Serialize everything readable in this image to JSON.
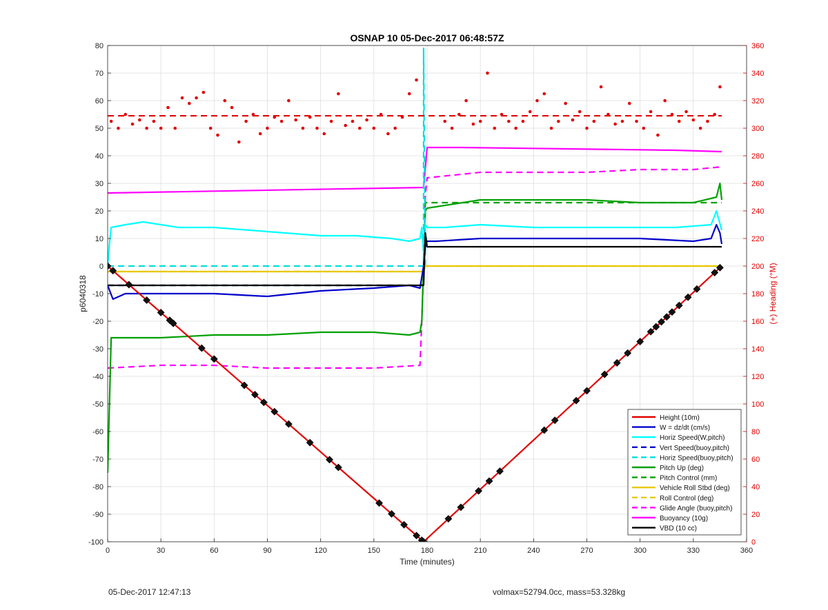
{
  "chart_data": {
    "type": "line",
    "title": "OSNAP 10 05-Dec-2017 06:48:57Z",
    "xlabel": "Time (minutes)",
    "ylabel": "p6040318",
    "y2label": "(+) Heading (°M)",
    "xlim": [
      0,
      360
    ],
    "ylim": [
      -100,
      80
    ],
    "y2lim": [
      0,
      360
    ],
    "xticks": [
      0,
      30,
      60,
      90,
      120,
      150,
      180,
      210,
      240,
      270,
      300,
      330,
      360
    ],
    "yticks": [
      -100,
      -90,
      -80,
      -70,
      -60,
      -50,
      -40,
      -30,
      -20,
      -10,
      0,
      10,
      20,
      30,
      40,
      50,
      60,
      70,
      80
    ],
    "y2ticks": [
      0,
      20,
      40,
      60,
      80,
      100,
      120,
      140,
      160,
      180,
      200,
      220,
      240,
      260,
      280,
      300,
      320,
      340,
      360
    ],
    "grid": true,
    "legend_position": "bottom-right",
    "series": [
      {
        "name": "Height (10m)",
        "color": "#e00000",
        "style": "solid",
        "x": [
          0,
          178,
          346
        ],
        "y": [
          0,
          -100,
          0
        ]
      },
      {
        "name": "W = dz/dt (cm/s)",
        "color": "#0000cc",
        "style": "solid",
        "x": [
          0,
          3,
          10,
          30,
          60,
          90,
          120,
          150,
          170,
          176,
          177,
          178,
          179,
          180,
          185,
          210,
          240,
          270,
          300,
          330,
          340,
          343,
          345,
          346
        ],
        "y": [
          -7,
          -12,
          -10,
          -10,
          -10,
          -11,
          -9,
          -8,
          -7,
          -8,
          -4,
          0,
          7,
          9,
          9,
          10,
          10,
          10,
          10,
          9,
          10,
          15,
          12,
          8
        ]
      },
      {
        "name": "Horiz Speed(W,pitch)",
        "color": "#00ffff",
        "style": "solid",
        "x": [
          0,
          1,
          2,
          10,
          20,
          40,
          60,
          80,
          100,
          120,
          140,
          160,
          170,
          176,
          177,
          178,
          179,
          180,
          190,
          210,
          240,
          270,
          300,
          320,
          340,
          343,
          346
        ],
        "y": [
          0,
          8,
          14,
          15,
          16,
          14,
          14,
          13,
          12,
          11,
          11,
          10,
          9,
          10,
          14,
          5,
          15,
          14,
          14,
          15,
          14,
          14,
          14,
          14,
          15,
          20,
          13
        ]
      },
      {
        "name": "Vert Speed(buoy,pitch)",
        "color": "#0000cc",
        "style": "dashed",
        "x": [
          0,
          177
        ],
        "y": [
          -7,
          -7
        ]
      },
      {
        "name": "Horiz Speed(buoy,pitch)",
        "color": "#00dddd",
        "style": "dashed",
        "x": [
          0,
          177,
          178,
          178,
          179
        ],
        "y": [
          0,
          0,
          0,
          79,
          0
        ]
      },
      {
        "name": "Pitch Up (deg)",
        "color": "#00a000",
        "style": "solid",
        "x": [
          0,
          2,
          10,
          30,
          60,
          90,
          120,
          150,
          170,
          176,
          177,
          178,
          179,
          180,
          200,
          210,
          240,
          270,
          300,
          330,
          343,
          345,
          346
        ],
        "y": [
          -75,
          -26,
          -26,
          -26,
          -25,
          -25,
          -24,
          -24,
          -25,
          -24,
          -20,
          0,
          20,
          21,
          23,
          24,
          24,
          24,
          23,
          23,
          25,
          30,
          24
        ]
      },
      {
        "name": "Pitch Control (mm)",
        "color": "#00a000",
        "style": "dashed",
        "x": [
          0,
          177,
          178,
          179,
          346
        ],
        "y": [
          -7,
          -7,
          -6,
          23,
          23
        ]
      },
      {
        "name": "Vehicle Roll Stbd (deg)",
        "color": "#e8c800",
        "style": "solid",
        "x": [
          0,
          178,
          179,
          346
        ],
        "y": [
          -2,
          -2,
          0,
          0
        ]
      },
      {
        "name": "Roll Control (deg)",
        "color": "#e8c800",
        "style": "dashed",
        "x": [
          0,
          178,
          179,
          346
        ],
        "y": [
          -2,
          -2,
          0,
          0
        ]
      },
      {
        "name": "Glide Angle (buoy,pitch)",
        "color": "#ff00ff",
        "style": "dashed",
        "x": [
          0,
          30,
          60,
          90,
          120,
          150,
          176,
          177,
          178,
          179,
          180,
          210,
          240,
          270,
          300,
          330,
          346
        ],
        "y": [
          -37,
          -36,
          -36,
          -37,
          -37,
          -37,
          -36,
          -20,
          0,
          26,
          32,
          34,
          34,
          34,
          35,
          35,
          36
        ]
      },
      {
        "name": "Buoyancy (10g)",
        "color": "#ff00ff",
        "style": "solid",
        "x": [
          0,
          178,
          180,
          200,
          260,
          320,
          346
        ],
        "y": [
          26.5,
          28.5,
          43,
          43,
          42.5,
          42,
          41.5
        ]
      },
      {
        "name": "VBD (10 cc)",
        "color": "#000000",
        "style": "solid",
        "x": [
          0,
          178,
          179,
          180,
          346
        ],
        "y": [
          -7,
          -7,
          12,
          7,
          7
        ]
      }
    ],
    "heading": {
      "name": "Heading",
      "color": "#e00000",
      "axis": "y2",
      "reference_value": 309,
      "x": [
        2,
        6,
        10,
        14,
        18,
        22,
        26,
        30,
        34,
        38,
        42,
        46,
        50,
        54,
        58,
        62,
        66,
        70,
        74,
        78,
        82,
        86,
        90,
        94,
        98,
        102,
        106,
        110,
        114,
        118,
        122,
        126,
        130,
        134,
        138,
        142,
        146,
        150,
        154,
        158,
        162,
        166,
        170,
        174,
        190,
        194,
        198,
        202,
        206,
        210,
        214,
        218,
        222,
        226,
        230,
        234,
        238,
        242,
        246,
        250,
        254,
        258,
        262,
        266,
        270,
        274,
        278,
        282,
        286,
        290,
        294,
        298,
        302,
        306,
        310,
        314,
        318,
        322,
        326,
        330,
        334,
        338,
        342,
        345
      ],
      "y": [
        305,
        300,
        310,
        303,
        306,
        300,
        305,
        300,
        315,
        300,
        322,
        318,
        322,
        326,
        300,
        295,
        320,
        315,
        290,
        305,
        310,
        296,
        300,
        308,
        305,
        320,
        306,
        300,
        308,
        300,
        296,
        305,
        325,
        302,
        305,
        300,
        306,
        300,
        310,
        296,
        300,
        308,
        325,
        335,
        305,
        300,
        310,
        320,
        303,
        305,
        340,
        300,
        310,
        305,
        300,
        305,
        312,
        320,
        325,
        300,
        305,
        318,
        306,
        312,
        300,
        305,
        330,
        310,
        303,
        305,
        318,
        305,
        300,
        312,
        295,
        320,
        310,
        305,
        312,
        306,
        300,
        305,
        310,
        330
      ]
    },
    "depth_markers": {
      "series": "Height (10m)",
      "x": [
        0,
        3,
        12,
        22,
        30,
        35,
        37,
        53,
        60,
        77,
        83,
        88,
        94,
        102,
        114,
        125,
        130,
        153,
        160,
        167,
        174,
        177,
        178,
        192,
        199,
        209,
        215,
        221,
        246,
        252,
        264,
        270,
        280,
        287,
        293,
        300,
        306,
        309,
        312,
        315,
        318,
        322,
        327,
        332,
        342,
        345
      ]
    }
  },
  "footer": {
    "left": "05-Dec-2017 12:47:13",
    "right": "volmax=52794.0cc, mass=53.328kg"
  }
}
